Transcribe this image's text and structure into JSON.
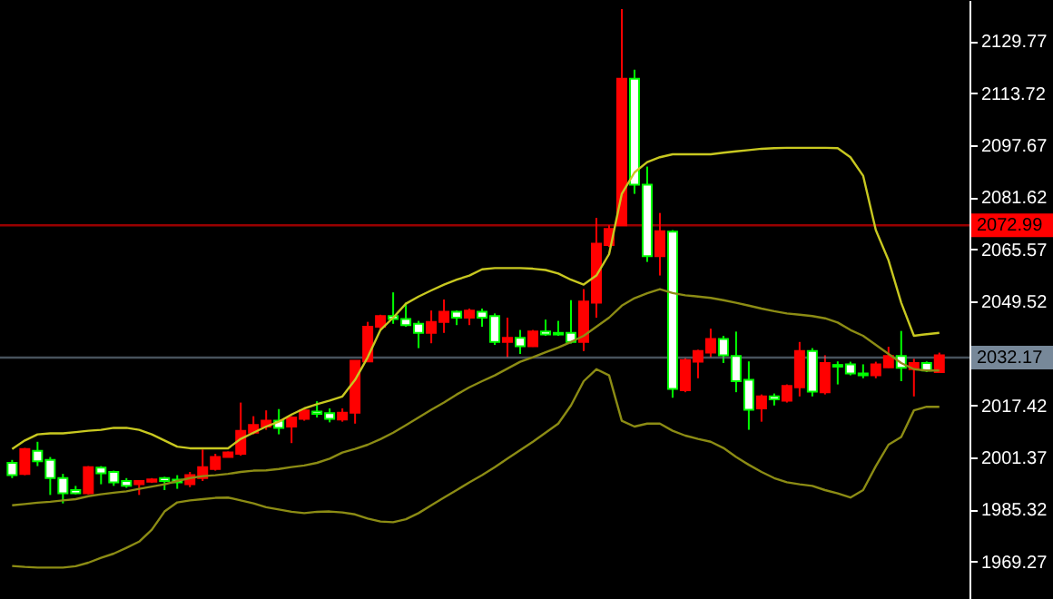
{
  "chart_data": {
    "type": "candlestick",
    "categories": [
      null,
      null,
      null,
      null,
      null,
      null,
      null,
      null,
      null,
      null,
      null,
      null,
      null,
      null,
      null,
      null,
      null,
      null,
      null,
      null,
      null,
      null,
      null,
      null,
      null,
      null,
      null,
      null,
      null,
      null,
      null,
      null,
      null,
      null,
      null,
      null,
      null,
      null,
      null,
      null,
      null,
      null,
      null,
      null,
      null,
      null,
      null,
      null,
      null,
      null,
      null,
      null,
      null,
      null,
      null,
      null,
      null,
      null,
      null,
      null,
      null,
      null,
      null,
      null,
      null,
      null,
      null,
      null,
      null,
      null,
      null,
      null,
      null,
      null
    ],
    "ohlc": [
      [
        1999.7,
        2000.6,
        1995.0,
        1995.9
      ],
      [
        1996.3,
        2004.3,
        1995.9,
        2004.0
      ],
      [
        2003.4,
        2006.2,
        1998.7,
        2000.2
      ],
      [
        2000.6,
        2001.5,
        1989.8,
        1995.0
      ],
      [
        1995.0,
        1996.3,
        1987.2,
        1990.3
      ],
      [
        1991.3,
        1992.6,
        1990.0,
        1990.3
      ],
      [
        1990.3,
        1998.7,
        1990.0,
        1998.4
      ],
      [
        1998.2,
        1998.7,
        1993.1,
        1996.5
      ],
      [
        1996.9,
        1997.3,
        1992.6,
        1993.7
      ],
      [
        1994.1,
        1995.0,
        1992.0,
        1992.6
      ],
      [
        1993.1,
        1994.1,
        1989.8,
        1994.1
      ],
      [
        1993.9,
        1995.0,
        1993.5,
        1994.6
      ],
      [
        1995.0,
        1995.4,
        1991.3,
        1994.1
      ],
      [
        1994.5,
        1995.9,
        1991.7,
        1993.7
      ],
      [
        1993.1,
        1996.9,
        1992.2,
        1995.9
      ],
      [
        1995.0,
        2003.8,
        1994.1,
        1998.4
      ],
      [
        1997.8,
        2002.5,
        1997.3,
        2001.5
      ],
      [
        2001.5,
        2003.2,
        2001.4,
        2002.9
      ],
      [
        2002.5,
        2018.3,
        2001.9,
        2009.6
      ],
      [
        2009.0,
        2014.1,
        2008.5,
        2011.4
      ],
      [
        2010.9,
        2015.9,
        2009.9,
        2012.7
      ],
      [
        2012.7,
        2016.3,
        2008.5,
        2010.5
      ],
      [
        2010.9,
        2014.1,
        2005.8,
        2013.7
      ],
      [
        2013.3,
        2016.5,
        2012.7,
        2015.9
      ],
      [
        2015.5,
        2018.7,
        2013.7,
        2014.8
      ],
      [
        2015.0,
        2016.5,
        2012.2,
        2013.3
      ],
      [
        2013.1,
        2016.5,
        2012.4,
        2015.2
      ],
      [
        2015.2,
        2031.2,
        2011.8,
        2031.2
      ],
      [
        2031.0,
        2043.2,
        2030.9,
        2041.7
      ],
      [
        2041.7,
        2045.4,
        2040.7,
        2045.0
      ],
      [
        2045.0,
        2052.3,
        2042.6,
        2044.1
      ],
      [
        2044.1,
        2049.1,
        2041.7,
        2042.2
      ],
      [
        2042.6,
        2043.5,
        2035.1,
        2039.8
      ],
      [
        2039.8,
        2046.7,
        2036.6,
        2043.2
      ],
      [
        2043.2,
        2050.1,
        2039.8,
        2046.3
      ],
      [
        2046.3,
        2046.7,
        2042.2,
        2044.5
      ],
      [
        2044.5,
        2047.3,
        2042.2,
        2046.7
      ],
      [
        2046.3,
        2047.3,
        2041.7,
        2044.5
      ],
      [
        2045.0,
        2045.8,
        2036.1,
        2037.0
      ],
      [
        2037.0,
        2044.5,
        2032.3,
        2038.3
      ],
      [
        2038.3,
        2040.7,
        2033.3,
        2035.7
      ],
      [
        2035.7,
        2040.7,
        2035.5,
        2040.2
      ],
      [
        2040.2,
        2043.9,
        2038.9,
        2039.3
      ],
      [
        2039.8,
        2043.5,
        2038.9,
        2039.3
      ],
      [
        2039.8,
        2049.9,
        2036.5,
        2037.0
      ],
      [
        2037.0,
        2053.3,
        2034.2,
        2049.5
      ],
      [
        2049.1,
        2075.3,
        2044.5,
        2067.3
      ],
      [
        2066.9,
        2073.0,
        2066.3,
        2071.9
      ],
      [
        2073.0,
        2139.7,
        2073.0,
        2118.2
      ],
      [
        2118.2,
        2121.0,
        2082.7,
        2085.5
      ],
      [
        2085.5,
        2091.1,
        2061.7,
        2063.5
      ],
      [
        2063.5,
        2076.8,
        2057.5,
        2071.2
      ],
      [
        2071.0,
        2071.5,
        2019.8,
        2022.5
      ],
      [
        2022.1,
        2032.0,
        2021.5,
        2031.4
      ],
      [
        2030.9,
        2034.6,
        2025.8,
        2034.2
      ],
      [
        2033.7,
        2041.1,
        2032.3,
        2037.9
      ],
      [
        2037.9,
        2038.9,
        2030.5,
        2032.9
      ],
      [
        2032.7,
        2040.2,
        2021.5,
        2024.9
      ],
      [
        2025.3,
        2031.0,
        2009.9,
        2016.1
      ],
      [
        2016.5,
        2020.8,
        2012.4,
        2020.2
      ],
      [
        2020.2,
        2021.1,
        2017.4,
        2019.3
      ],
      [
        2018.9,
        2023.9,
        2018.3,
        2023.4
      ],
      [
        2023.0,
        2037.0,
        2020.2,
        2034.2
      ],
      [
        2034.2,
        2035.1,
        2020.2,
        2021.7
      ],
      [
        2021.5,
        2032.9,
        2020.8,
        2030.5
      ],
      [
        2029.9,
        2031.0,
        2023.9,
        2029.4
      ],
      [
        2030.1,
        2030.9,
        2026.7,
        2027.3
      ],
      [
        2027.3,
        2030.1,
        2025.8,
        2026.7
      ],
      [
        2026.7,
        2030.9,
        2025.8,
        2030.1
      ],
      [
        2029.2,
        2035.5,
        2029.0,
        2032.7
      ],
      [
        2032.7,
        2040.4,
        2024.9,
        2029.0
      ],
      [
        2028.6,
        2031.8,
        2020.2,
        2030.5
      ],
      [
        2030.5,
        2031.0,
        2027.7,
        2028.2
      ],
      [
        2027.7,
        2033.7,
        2027.7,
        2032.9
      ]
    ],
    "series": [
      {
        "type": "line",
        "color": "#c8c820",
        "values": [
          2004.0,
          2006.6,
          2008.5,
          2008.8,
          2008.8,
          2009.2,
          2009.6,
          2009.9,
          2010.5,
          2010.5,
          2009.9,
          2008.5,
          2006.6,
          2004.7,
          2004.2,
          2004.2,
          2004.2,
          2004.2,
          2007.1,
          2009.0,
          2010.9,
          2012.4,
          2014.6,
          2016.5,
          2017.8,
          2018.9,
          2020.2,
          2025.3,
          2032.3,
          2040.7,
          2044.5,
          2048.8,
          2051.0,
          2052.9,
          2054.7,
          2056.2,
          2057.5,
          2059.4,
          2059.8,
          2059.8,
          2059.8,
          2059.6,
          2059.2,
          2058.1,
          2056.2,
          2054.7,
          2057.5,
          2064.1,
          2082.7,
          2089.3,
          2092.5,
          2094.0,
          2094.9,
          2094.9,
          2094.9,
          2094.9,
          2095.4,
          2095.8,
          2096.2,
          2096.6,
          2096.8,
          2096.9,
          2096.9,
          2096.9,
          2096.9,
          2096.8,
          2094.0,
          2088.3,
          2071.5,
          2062.2,
          2049.1,
          2038.9,
          2039.4,
          2039.8
        ]
      },
      {
        "type": "line",
        "color": "#8c8c14",
        "values": [
          1986.6,
          1987.0,
          1987.4,
          1987.7,
          1988.1,
          1988.5,
          1989.4,
          1990.0,
          1990.5,
          1990.9,
          1991.7,
          1992.4,
          1993.1,
          1994.1,
          1995.0,
          1995.6,
          1995.9,
          1996.3,
          1996.9,
          1997.3,
          1997.4,
          1997.8,
          1998.4,
          1998.9,
          1999.7,
          2001.0,
          2002.9,
          2004.0,
          2005.3,
          2007.0,
          2009.0,
          2011.3,
          2013.7,
          2016.1,
          2018.3,
          2020.8,
          2023.0,
          2024.9,
          2026.7,
          2028.8,
          2030.9,
          2032.3,
          2033.8,
          2035.3,
          2037.0,
          2038.9,
          2041.7,
          2044.5,
          2048.2,
          2050.5,
          2052.0,
          2053.3,
          2052.1,
          2051.4,
          2051.0,
          2050.6,
          2049.9,
          2049.1,
          2048.2,
          2047.3,
          2046.5,
          2045.8,
          2045.4,
          2045.0,
          2044.3,
          2043.0,
          2040.7,
          2038.9,
          2036.1,
          2033.3,
          2030.5,
          2028.6,
          2028.2,
          2028.2
        ]
      },
      {
        "type": "line",
        "color": "#8c8c14",
        "values": [
          1967.9,
          1967.6,
          1967.4,
          1967.4,
          1967.4,
          1967.8,
          1968.9,
          1970.4,
          1971.7,
          1973.5,
          1975.4,
          1979.1,
          1984.7,
          1987.5,
          1988.1,
          1988.5,
          1988.9,
          1989.0,
          1988.1,
          1987.2,
          1986.0,
          1985.3,
          1984.6,
          1984.2,
          1984.6,
          1984.7,
          1984.4,
          1983.8,
          1982.5,
          1981.6,
          1981.4,
          1982.3,
          1984.2,
          1986.6,
          1989.0,
          1991.3,
          1993.7,
          1995.9,
          1998.4,
          2001.0,
          2003.6,
          2006.2,
          2009.0,
          2011.8,
          2017.4,
          2024.9,
          2028.6,
          2026.7,
          2012.7,
          2010.9,
          2011.8,
          2011.8,
          2009.6,
          2008.1,
          2007.1,
          2006.2,
          2004.3,
          2001.5,
          1999.1,
          1996.9,
          1995.0,
          1993.7,
          1993.1,
          1992.6,
          1991.3,
          1990.3,
          1989.0,
          1991.3,
          1998.7,
          2005.3,
          2007.7,
          2015.9,
          2017.0,
          2017.0
        ]
      }
    ],
    "ylim": [
      1957.7,
      2142.5
    ],
    "yticks": [
      2129.77,
      2113.72,
      2097.67,
      2081.62,
      2065.57,
      2049.52,
      2017.42,
      2001.37,
      1985.32,
      1969.27
    ],
    "ref_lines": [
      {
        "axis": "y",
        "value": 2072.99,
        "label": "2072.99",
        "color": "#ff0000"
      },
      {
        "axis": "y",
        "value": 2032.17,
        "label": "2032.17",
        "color": "#778899"
      }
    ],
    "tick_labels": "y",
    "grid": false,
    "marker": "none",
    "line_style": "solid"
  }
}
